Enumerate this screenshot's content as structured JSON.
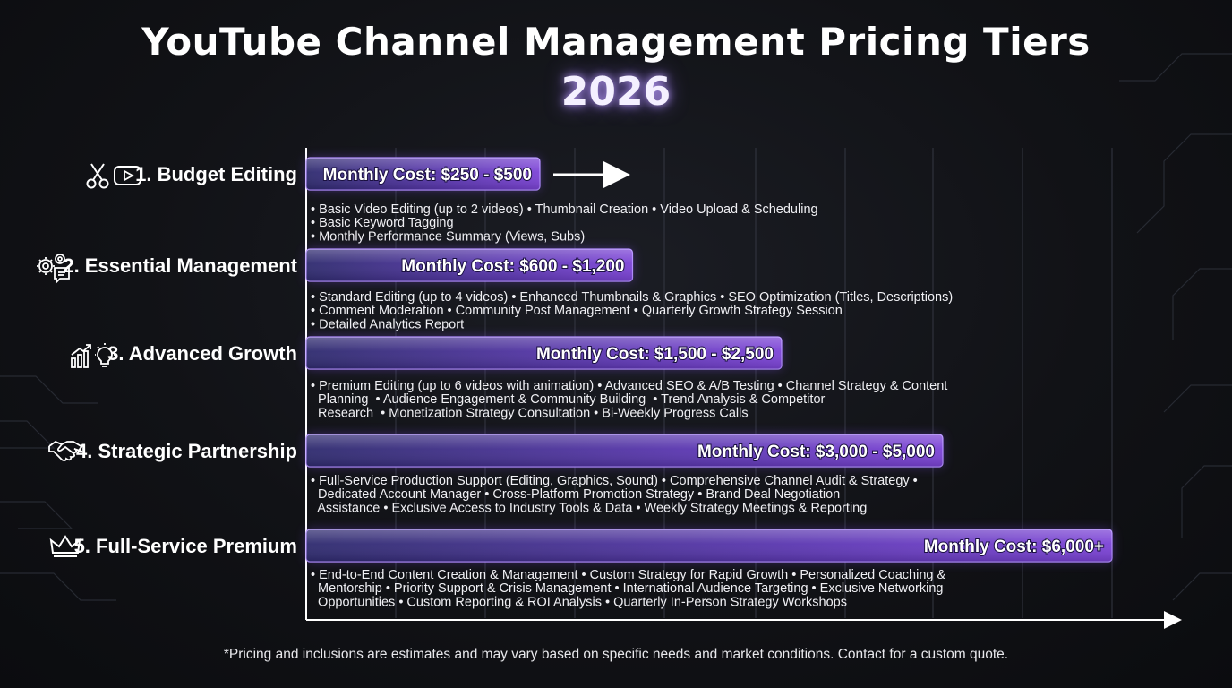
{
  "title": "YouTube Channel Management Pricing Tiers",
  "subtitle": "2026",
  "footnote": "*Pricing and inclusions are estimates and may vary based on specific needs and market conditions. Contact for a custom quote.",
  "colors": {
    "background": "#111216",
    "bar_start": "#3a2f8a",
    "bar_end": "#7a3ed0",
    "bar_glow": "#a070ff",
    "label_bg": "#5a3aa8",
    "text": "#ffffff",
    "grid": "#3a3d48"
  },
  "chart_data": {
    "type": "bar",
    "orientation": "horizontal",
    "title": "YouTube Channel Management Pricing Tiers",
    "subtitle": "2026",
    "xlabel": "",
    "ylabel": "",
    "grid": true,
    "categories": [
      "1. Budget Editing",
      "2. Essential Management",
      "3. Advanced Growth",
      "4. Strategic Partnership",
      "5. Full-Service Premium"
    ],
    "icons": [
      [
        "scissors-icon",
        "play-button-icon"
      ],
      [
        "gears-icon",
        "chat-icon"
      ],
      [
        "growth-chart-icon",
        "lightbulb-icon"
      ],
      [
        "handshake-icon"
      ],
      [
        "crown-icon"
      ]
    ],
    "values_min": [
      250,
      600,
      1500,
      3000,
      6000
    ],
    "values_max": [
      500,
      1200,
      2500,
      5000,
      null
    ],
    "bar_labels": [
      "Monthly Cost: $250 - $500",
      "Monthly Cost: $600 - $1,200",
      "Monthly Cost: $1,500 - $2,500",
      "Monthly Cost: $3,000 - $5,000",
      "Monthly Cost: $6,000+"
    ],
    "bar_extent": [
      0.29,
      0.405,
      0.59,
      0.79,
      1.0
    ],
    "descriptions": [
      [
        "• Basic Video Editing (up to 2 videos) • Thumbnail Creation • Video Upload & Scheduling",
        "• Basic Keyword Tagging",
        "• Monthly Performance Summary (Views, Subs)"
      ],
      [
        "• Standard Editing (up to 4 videos) • Enhanced Thumbnails & Graphics • SEO Optimization (Titles, Descriptions)",
        "• Comment Moderation • Community Post Management • Quarterly Growth Strategy Session",
        "• Detailed Analytics Report"
      ],
      [
        "• Premium Editing (up to 6 videos with animation) • Advanced SEO & A/B Testing • Channel Strategy & Content",
        "  Planning  • Audience Engagement & Community Building  • Trend Analysis & Competitor",
        "  Research  • Monetization Strategy Consultation • Bi-Weekly Progress Calls"
      ],
      [
        "• Full-Service Production Support (Editing, Graphics, Sound) • Comprehensive Channel Audit & Strategy •",
        "  Dedicated Account Manager • Cross-Platform Promotion Strategy • Brand Deal Negotiation",
        "  Assistance • Exclusive Access to Industry Tools & Data • Weekly Strategy Meetings & Reporting"
      ],
      [
        "• End-to-End Content Creation & Management • Custom Strategy for Rapid Growth • Personalized Coaching &",
        "  Mentorship • Priority Support & Crisis Management • International Audience Targeting • Exclusive Networking",
        "  Opportunities • Custom Reporting & ROI Analysis • Quarterly In-Person Strategy Workshops"
      ]
    ]
  }
}
